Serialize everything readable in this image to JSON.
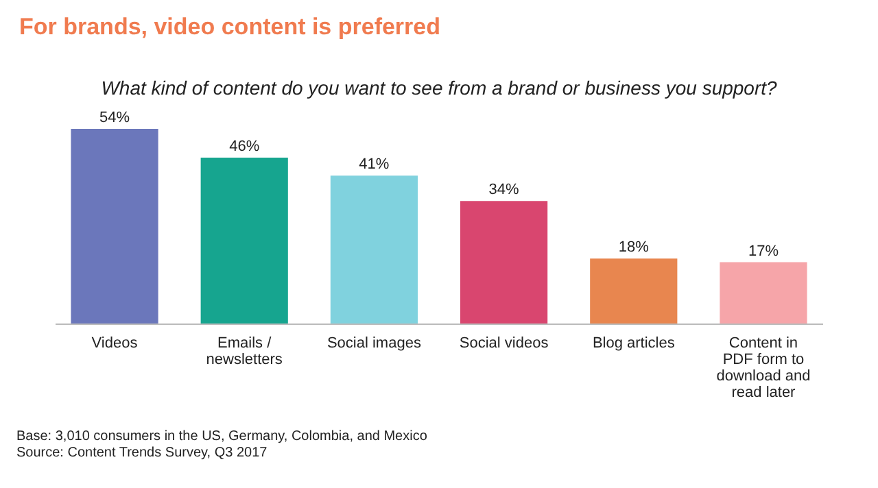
{
  "chart_data": {
    "type": "bar",
    "title": "For brands, video content is preferred",
    "subtitle": "What kind of content do you want to see from a brand or business you support?",
    "categories": [
      "Videos",
      "Emails / newsletters",
      "Social images",
      "Social videos",
      "Blog articles",
      "Content in PDF form to download and read later"
    ],
    "values": [
      54,
      46,
      41,
      34,
      18,
      17
    ],
    "colors": [
      "#6b77bb",
      "#16a58f",
      "#80d2de",
      "#d9466f",
      "#e8864f",
      "#f6a5a9"
    ],
    "value_labels": [
      "54%",
      "46%",
      "41%",
      "34%",
      "18%",
      "17%"
    ],
    "grid": false,
    "legend": false,
    "annotations": [
      "Base: 3,010 consumers in the US, Germany, Colombia, and Mexico",
      "Source: Content Trends Survey, Q3 2017"
    ]
  }
}
